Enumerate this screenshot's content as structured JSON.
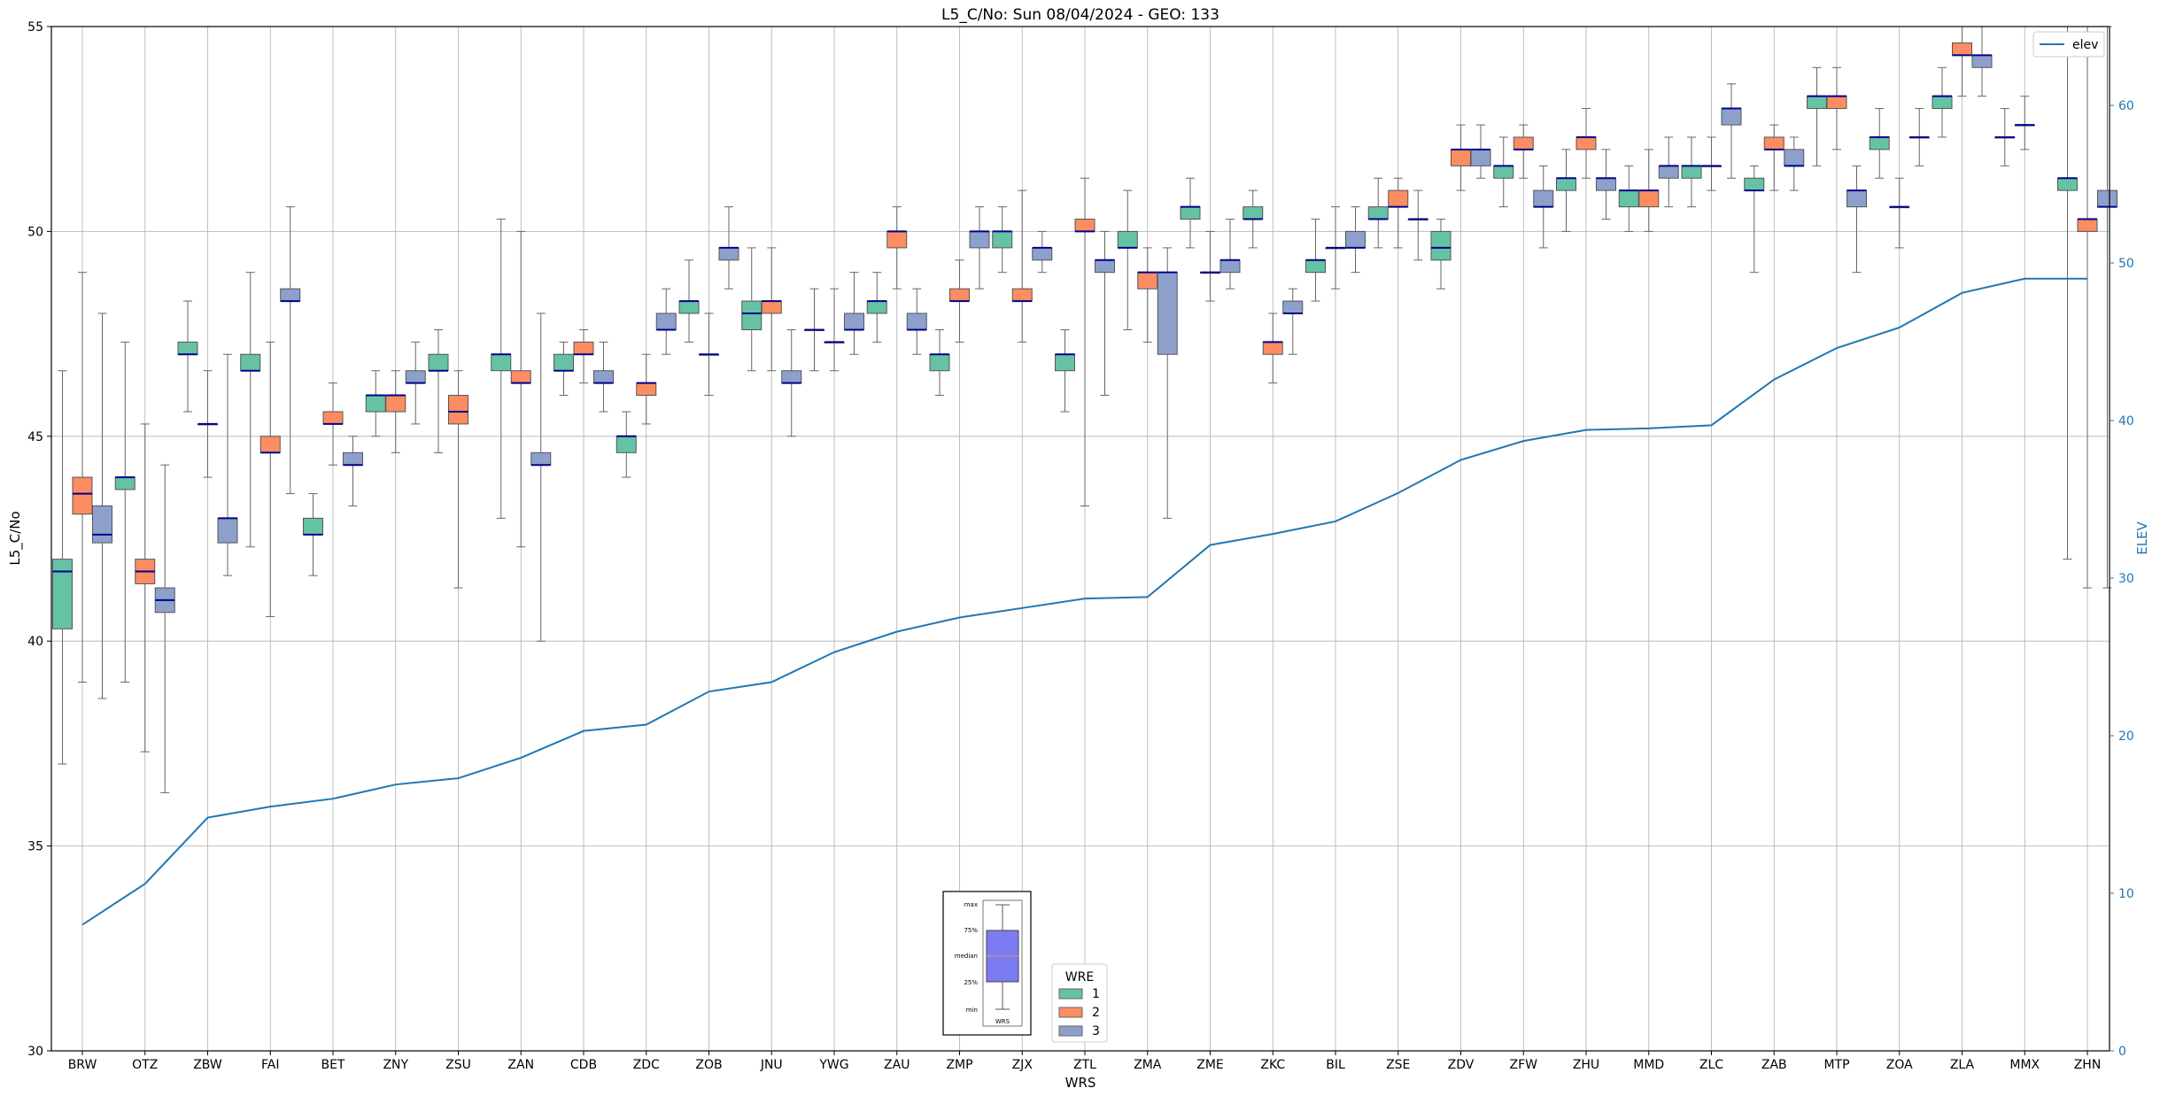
{
  "chart_data": {
    "type": "box",
    "title": "L5_C/No: Sun 08/04/2024 - GEO: 133",
    "xlabel": "WRS",
    "ylabel": "L5_C/No",
    "y2label": "ELEV",
    "ylim": [
      30,
      55
    ],
    "y2lim": [
      0,
      65
    ],
    "yticks": [
      30,
      35,
      40,
      45,
      50,
      55
    ],
    "y2ticks": [
      0,
      10,
      20,
      30,
      40,
      50,
      60
    ],
    "grid": true,
    "categories": [
      "BRW",
      "OTZ",
      "ZBW",
      "FAI",
      "BET",
      "ZNY",
      "ZSU",
      "ZAN",
      "CDB",
      "ZDC",
      "ZOB",
      "JNU",
      "YWG",
      "ZAU",
      "ZMP",
      "ZJX",
      "ZTL",
      "ZMA",
      "ZME",
      "ZKC",
      "BIL",
      "ZSE",
      "ZDV",
      "ZFW",
      "ZHU",
      "MMD",
      "ZLC",
      "ZAB",
      "MTP",
      "ZOA",
      "ZLA",
      "MMX",
      "ZHN"
    ],
    "legend": {
      "title": "WRE",
      "placement": "lower-center",
      "entries": [
        "1",
        "2",
        "3"
      ]
    },
    "legend2": {
      "entries": [
        "elev"
      ],
      "placement": "top-right"
    },
    "colors": {
      "wre1": "#66c2a5",
      "wre2": "#fc8d62",
      "wre3": "#8da0cb",
      "median": "#00008b",
      "elev": "#1f77b4",
      "whisker": "#666666"
    },
    "boxes": [
      {
        "cat": "BRW",
        "wre": 1,
        "min": 37.0,
        "q1": 40.3,
        "median": 41.7,
        "q3": 42.0,
        "max": 46.6
      },
      {
        "cat": "BRW",
        "wre": 2,
        "min": 39.0,
        "q1": 43.1,
        "median": 43.6,
        "q3": 44.0,
        "max": 49.0
      },
      {
        "cat": "BRW",
        "wre": 3,
        "min": 38.6,
        "q1": 42.4,
        "median": 42.6,
        "q3": 43.3,
        "max": 48.0
      },
      {
        "cat": "OTZ",
        "wre": 1,
        "min": 39.0,
        "q1": 43.7,
        "median": 44.0,
        "q3": 44.0,
        "max": 47.3
      },
      {
        "cat": "OTZ",
        "wre": 2,
        "min": 37.3,
        "q1": 41.4,
        "median": 41.7,
        "q3": 42.0,
        "max": 45.3
      },
      {
        "cat": "OTZ",
        "wre": 3,
        "min": 36.3,
        "q1": 40.7,
        "median": 41.0,
        "q3": 41.3,
        "max": 44.3
      },
      {
        "cat": "ZBW",
        "wre": 1,
        "min": 45.6,
        "q1": 47.0,
        "median": 47.0,
        "q3": 47.3,
        "max": 48.3
      },
      {
        "cat": "ZBW",
        "wre": 3,
        "min": 44.0,
        "q1": 45.3,
        "median": 45.3,
        "q3": 45.3,
        "max": 46.6
      },
      {
        "cat": "ZBW",
        "wre": 3,
        "min": 41.6,
        "q1": 42.4,
        "median": 43.0,
        "q3": 43.0,
        "max": 47.0
      },
      {
        "cat": "FAI",
        "wre": 1,
        "min": 42.3,
        "q1": 46.6,
        "median": 46.6,
        "q3": 47.0,
        "max": 49.0
      },
      {
        "cat": "FAI",
        "wre": 2,
        "min": 40.6,
        "q1": 44.6,
        "median": 44.6,
        "q3": 45.0,
        "max": 47.3
      },
      {
        "cat": "FAI",
        "wre": 3,
        "min": 43.6,
        "q1": 48.3,
        "median": 48.3,
        "q3": 48.6,
        "max": 50.6
      },
      {
        "cat": "BET",
        "wre": 1,
        "min": 41.6,
        "q1": 42.6,
        "median": 42.6,
        "q3": 43.0,
        "max": 43.6
      },
      {
        "cat": "BET",
        "wre": 2,
        "min": 44.3,
        "q1": 45.3,
        "median": 45.3,
        "q3": 45.6,
        "max": 46.3
      },
      {
        "cat": "BET",
        "wre": 3,
        "min": 43.3,
        "q1": 44.3,
        "median": 44.3,
        "q3": 44.6,
        "max": 45.0
      },
      {
        "cat": "ZNY",
        "wre": 1,
        "min": 45.0,
        "q1": 45.6,
        "median": 46.0,
        "q3": 46.0,
        "max": 46.6
      },
      {
        "cat": "ZNY",
        "wre": 2,
        "min": 44.6,
        "q1": 45.6,
        "median": 46.0,
        "q3": 46.0,
        "max": 46.6
      },
      {
        "cat": "ZNY",
        "wre": 3,
        "min": 45.3,
        "q1": 46.3,
        "median": 46.3,
        "q3": 46.6,
        "max": 47.3
      },
      {
        "cat": "ZSU",
        "wre": 1,
        "min": 44.6,
        "q1": 46.6,
        "median": 46.6,
        "q3": 47.0,
        "max": 47.6
      },
      {
        "cat": "ZSU",
        "wre": 2,
        "min": 41.3,
        "q1": 45.3,
        "median": 45.6,
        "q3": 46.0,
        "max": 46.6
      },
      {
        "cat": "ZAN",
        "wre": 1,
        "min": 43.0,
        "q1": 46.6,
        "median": 47.0,
        "q3": 47.0,
        "max": 50.3
      },
      {
        "cat": "ZAN",
        "wre": 2,
        "min": 42.3,
        "q1": 46.3,
        "median": 46.3,
        "q3": 46.6,
        "max": 50.0
      },
      {
        "cat": "ZAN",
        "wre": 3,
        "min": 40.0,
        "q1": 44.3,
        "median": 44.3,
        "q3": 44.6,
        "max": 48.0
      },
      {
        "cat": "CDB",
        "wre": 1,
        "min": 46.0,
        "q1": 46.6,
        "median": 46.6,
        "q3": 47.0,
        "max": 47.3
      },
      {
        "cat": "CDB",
        "wre": 2,
        "min": 46.3,
        "q1": 47.0,
        "median": 47.0,
        "q3": 47.3,
        "max": 47.6
      },
      {
        "cat": "CDB",
        "wre": 3,
        "min": 45.6,
        "q1": 46.3,
        "median": 46.3,
        "q3": 46.6,
        "max": 47.3
      },
      {
        "cat": "ZDC",
        "wre": 1,
        "min": 44.0,
        "q1": 44.6,
        "median": 45.0,
        "q3": 45.0,
        "max": 45.6
      },
      {
        "cat": "ZDC",
        "wre": 2,
        "min": 45.3,
        "q1": 46.0,
        "median": 46.3,
        "q3": 46.3,
        "max": 47.0
      },
      {
        "cat": "ZDC",
        "wre": 3,
        "min": 47.0,
        "q1": 47.6,
        "median": 47.6,
        "q3": 48.0,
        "max": 48.6
      },
      {
        "cat": "ZOB",
        "wre": 1,
        "min": 47.3,
        "q1": 48.0,
        "median": 48.3,
        "q3": 48.3,
        "max": 49.3
      },
      {
        "cat": "ZOB",
        "wre": 3,
        "min": 46.0,
        "q1": 47.0,
        "median": 47.0,
        "q3": 47.0,
        "max": 48.0
      },
      {
        "cat": "ZOB",
        "wre": 3,
        "min": 48.6,
        "q1": 49.3,
        "median": 49.6,
        "q3": 49.6,
        "max": 50.6
      },
      {
        "cat": "JNU",
        "wre": 1,
        "min": 46.6,
        "q1": 47.6,
        "median": 48.0,
        "q3": 48.3,
        "max": 49.6
      },
      {
        "cat": "JNU",
        "wre": 2,
        "min": 46.6,
        "q1": 48.0,
        "median": 48.3,
        "q3": 48.3,
        "max": 49.6
      },
      {
        "cat": "JNU",
        "wre": 3,
        "min": 45.0,
        "q1": 46.3,
        "median": 46.3,
        "q3": 46.6,
        "max": 47.6
      },
      {
        "cat": "YWG",
        "wre": 1,
        "min": 46.6,
        "q1": 47.6,
        "median": 47.6,
        "q3": 47.6,
        "max": 48.6
      },
      {
        "cat": "YWG",
        "wre": 3,
        "min": 46.6,
        "q1": 47.3,
        "median": 47.3,
        "q3": 47.3,
        "max": 48.6
      },
      {
        "cat": "YWG",
        "wre": 3,
        "min": 47.0,
        "q1": 47.6,
        "median": 47.6,
        "q3": 48.0,
        "max": 49.0
      },
      {
        "cat": "ZAU",
        "wre": 1,
        "min": 47.3,
        "q1": 48.0,
        "median": 48.3,
        "q3": 48.3,
        "max": 49.0
      },
      {
        "cat": "ZAU",
        "wre": 2,
        "min": 48.6,
        "q1": 49.6,
        "median": 50.0,
        "q3": 50.0,
        "max": 50.6
      },
      {
        "cat": "ZAU",
        "wre": 3,
        "min": 47.0,
        "q1": 47.6,
        "median": 47.6,
        "q3": 48.0,
        "max": 48.6
      },
      {
        "cat": "ZMP",
        "wre": 1,
        "min": 46.0,
        "q1": 46.6,
        "median": 47.0,
        "q3": 47.0,
        "max": 47.6
      },
      {
        "cat": "ZMP",
        "wre": 2,
        "min": 47.3,
        "q1": 48.3,
        "median": 48.3,
        "q3": 48.6,
        "max": 49.3
      },
      {
        "cat": "ZMP",
        "wre": 3,
        "min": 48.6,
        "q1": 49.6,
        "median": 50.0,
        "q3": 50.0,
        "max": 50.6
      },
      {
        "cat": "ZJX",
        "wre": 1,
        "min": 49.0,
        "q1": 49.6,
        "median": 50.0,
        "q3": 50.0,
        "max": 50.6
      },
      {
        "cat": "ZJX",
        "wre": 2,
        "min": 47.3,
        "q1": 48.3,
        "median": 48.3,
        "q3": 48.6,
        "max": 51.0
      },
      {
        "cat": "ZJX",
        "wre": 3,
        "min": 49.0,
        "q1": 49.3,
        "median": 49.6,
        "q3": 49.6,
        "max": 50.0
      },
      {
        "cat": "ZTL",
        "wre": 1,
        "min": 45.6,
        "q1": 46.6,
        "median": 47.0,
        "q3": 47.0,
        "max": 47.6
      },
      {
        "cat": "ZTL",
        "wre": 2,
        "min": 43.3,
        "q1": 50.0,
        "median": 50.0,
        "q3": 50.3,
        "max": 51.3
      },
      {
        "cat": "ZTL",
        "wre": 3,
        "min": 46.0,
        "q1": 49.0,
        "median": 49.3,
        "q3": 49.3,
        "max": 50.0
      },
      {
        "cat": "ZMA",
        "wre": 1,
        "min": 47.6,
        "q1": 49.6,
        "median": 49.6,
        "q3": 50.0,
        "max": 51.0
      },
      {
        "cat": "ZMA",
        "wre": 2,
        "min": 47.3,
        "q1": 48.6,
        "median": 49.0,
        "q3": 49.0,
        "max": 49.6
      },
      {
        "cat": "ZMA",
        "wre": 3,
        "min": 43.0,
        "q1": 47.0,
        "median": 49.0,
        "q3": 49.0,
        "max": 49.6
      },
      {
        "cat": "ZME",
        "wre": 1,
        "min": 49.6,
        "q1": 50.3,
        "median": 50.6,
        "q3": 50.6,
        "max": 51.3
      },
      {
        "cat": "ZME",
        "wre": 3,
        "min": 48.3,
        "q1": 49.0,
        "median": 49.0,
        "q3": 49.0,
        "max": 50.0
      },
      {
        "cat": "ZME",
        "wre": 3,
        "min": 48.6,
        "q1": 49.0,
        "median": 49.3,
        "q3": 49.3,
        "max": 50.3
      },
      {
        "cat": "ZKC",
        "wre": 1,
        "min": 49.6,
        "q1": 50.3,
        "median": 50.3,
        "q3": 50.6,
        "max": 51.0
      },
      {
        "cat": "ZKC",
        "wre": 2,
        "min": 46.3,
        "q1": 47.0,
        "median": 47.3,
        "q3": 47.3,
        "max": 48.0
      },
      {
        "cat": "ZKC",
        "wre": 3,
        "min": 47.0,
        "q1": 48.0,
        "median": 48.0,
        "q3": 48.3,
        "max": 48.6
      },
      {
        "cat": "BIL",
        "wre": 1,
        "min": 48.3,
        "q1": 49.0,
        "median": 49.3,
        "q3": 49.3,
        "max": 50.3
      },
      {
        "cat": "BIL",
        "wre": 3,
        "min": 48.6,
        "q1": 49.6,
        "median": 49.6,
        "q3": 49.6,
        "max": 50.6
      },
      {
        "cat": "BIL",
        "wre": 3,
        "min": 49.0,
        "q1": 49.6,
        "median": 49.6,
        "q3": 50.0,
        "max": 50.6
      },
      {
        "cat": "ZSE",
        "wre": 1,
        "min": 49.6,
        "q1": 50.3,
        "median": 50.3,
        "q3": 50.6,
        "max": 51.3
      },
      {
        "cat": "ZSE",
        "wre": 2,
        "min": 49.6,
        "q1": 50.6,
        "median": 50.6,
        "q3": 51.0,
        "max": 51.3
      },
      {
        "cat": "ZSE",
        "wre": 3,
        "min": 49.3,
        "q1": 50.3,
        "median": 50.3,
        "q3": 50.3,
        "max": 51.0
      },
      {
        "cat": "ZDV",
        "wre": 1,
        "min": 48.6,
        "q1": 49.3,
        "median": 49.6,
        "q3": 50.0,
        "max": 50.3
      },
      {
        "cat": "ZDV",
        "wre": 2,
        "min": 51.0,
        "q1": 51.6,
        "median": 52.0,
        "q3": 52.0,
        "max": 52.6
      },
      {
        "cat": "ZDV",
        "wre": 3,
        "min": 51.3,
        "q1": 51.6,
        "median": 52.0,
        "q3": 52.0,
        "max": 52.6
      },
      {
        "cat": "ZFW",
        "wre": 1,
        "min": 50.6,
        "q1": 51.3,
        "median": 51.6,
        "q3": 51.6,
        "max": 52.3
      },
      {
        "cat": "ZFW",
        "wre": 2,
        "min": 51.3,
        "q1": 52.0,
        "median": 52.0,
        "q3": 52.3,
        "max": 52.6
      },
      {
        "cat": "ZFW",
        "wre": 3,
        "min": 49.6,
        "q1": 50.6,
        "median": 50.6,
        "q3": 51.0,
        "max": 51.6
      },
      {
        "cat": "ZHU",
        "wre": 1,
        "min": 50.0,
        "q1": 51.0,
        "median": 51.3,
        "q3": 51.3,
        "max": 52.0
      },
      {
        "cat": "ZHU",
        "wre": 2,
        "min": 51.3,
        "q1": 52.0,
        "median": 52.3,
        "q3": 52.3,
        "max": 53.0
      },
      {
        "cat": "ZHU",
        "wre": 3,
        "min": 50.3,
        "q1": 51.0,
        "median": 51.3,
        "q3": 51.3,
        "max": 52.0
      },
      {
        "cat": "MMD",
        "wre": 1,
        "min": 50.0,
        "q1": 50.6,
        "median": 51.0,
        "q3": 51.0,
        "max": 51.6
      },
      {
        "cat": "MMD",
        "wre": 2,
        "min": 50.0,
        "q1": 50.6,
        "median": 51.0,
        "q3": 51.0,
        "max": 52.0
      },
      {
        "cat": "MMD",
        "wre": 3,
        "min": 50.6,
        "q1": 51.3,
        "median": 51.6,
        "q3": 51.6,
        "max": 52.3
      },
      {
        "cat": "ZLC",
        "wre": 1,
        "min": 50.6,
        "q1": 51.3,
        "median": 51.6,
        "q3": 51.6,
        "max": 52.3
      },
      {
        "cat": "ZLC",
        "wre": 3,
        "min": 51.0,
        "q1": 51.6,
        "median": 51.6,
        "q3": 51.6,
        "max": 52.3
      },
      {
        "cat": "ZLC",
        "wre": 3,
        "min": 51.3,
        "q1": 52.6,
        "median": 53.0,
        "q3": 53.0,
        "max": 53.6
      },
      {
        "cat": "ZAB",
        "wre": 1,
        "min": 49.0,
        "q1": 51.0,
        "median": 51.0,
        "q3": 51.3,
        "max": 51.6
      },
      {
        "cat": "ZAB",
        "wre": 2,
        "min": 51.0,
        "q1": 52.0,
        "median": 52.0,
        "q3": 52.3,
        "max": 52.6
      },
      {
        "cat": "ZAB",
        "wre": 3,
        "min": 51.0,
        "q1": 51.6,
        "median": 51.6,
        "q3": 52.0,
        "max": 52.3
      },
      {
        "cat": "MTP",
        "wre": 1,
        "min": 51.6,
        "q1": 53.0,
        "median": 53.3,
        "q3": 53.3,
        "max": 54.0
      },
      {
        "cat": "MTP",
        "wre": 2,
        "min": 52.0,
        "q1": 53.0,
        "median": 53.3,
        "q3": 53.3,
        "max": 54.0
      },
      {
        "cat": "MTP",
        "wre": 3,
        "min": 49.0,
        "q1": 50.6,
        "median": 51.0,
        "q3": 51.0,
        "max": 51.6
      },
      {
        "cat": "ZOA",
        "wre": 1,
        "min": 51.3,
        "q1": 52.0,
        "median": 52.3,
        "q3": 52.3,
        "max": 53.0
      },
      {
        "cat": "ZOA",
        "wre": 3,
        "min": 49.6,
        "q1": 50.6,
        "median": 50.6,
        "q3": 50.6,
        "max": 51.3
      },
      {
        "cat": "ZOA",
        "wre": 3,
        "min": 51.6,
        "q1": 52.3,
        "median": 52.3,
        "q3": 52.3,
        "max": 53.0
      },
      {
        "cat": "ZLA",
        "wre": 1,
        "min": 52.3,
        "q1": 53.0,
        "median": 53.3,
        "q3": 53.3,
        "max": 54.0
      },
      {
        "cat": "ZLA",
        "wre": 2,
        "min": 53.3,
        "q1": 54.3,
        "median": 54.3,
        "q3": 54.6,
        "max": 55.0
      },
      {
        "cat": "ZLA",
        "wre": 3,
        "min": 53.3,
        "q1": 54.0,
        "median": 54.3,
        "q3": 54.3,
        "max": 55.0
      },
      {
        "cat": "MMX",
        "wre": 1,
        "min": 51.6,
        "q1": 52.3,
        "median": 52.3,
        "q3": 52.3,
        "max": 53.0
      },
      {
        "cat": "MMX",
        "wre": 3,
        "min": 52.0,
        "q1": 52.6,
        "median": 52.6,
        "q3": 52.6,
        "max": 53.3
      },
      {
        "cat": "ZHN",
        "wre": 1,
        "min": 42.0,
        "q1": 51.0,
        "median": 51.3,
        "q3": 51.3,
        "max": 55.0
      },
      {
        "cat": "ZHN",
        "wre": 2,
        "min": 41.3,
        "q1": 50.0,
        "median": 50.3,
        "q3": 50.3,
        "max": 55.0
      },
      {
        "cat": "ZHN",
        "wre": 3,
        "min": 41.3,
        "q1": 50.6,
        "median": 50.6,
        "q3": 51.0,
        "max": 55.0
      }
    ],
    "elev_series": {
      "name": "elev",
      "values": [
        8.0,
        10.6,
        14.8,
        15.5,
        16.0,
        16.9,
        17.3,
        18.6,
        20.3,
        20.7,
        22.8,
        23.4,
        25.3,
        26.6,
        27.5,
        28.1,
        28.7,
        28.8,
        32.1,
        32.8,
        33.6,
        35.4,
        37.5,
        38.7,
        39.4,
        39.5,
        39.7,
        42.6,
        44.6,
        45.9,
        48.1,
        49.0,
        49.0
      ],
      "x": [
        0,
        1,
        2,
        3,
        4,
        5,
        6,
        7,
        8,
        9,
        10,
        11,
        12,
        13,
        14,
        15,
        16,
        17,
        18,
        19,
        20,
        21,
        22,
        23,
        24,
        25,
        26,
        27,
        28,
        29,
        30,
        31,
        32
      ]
    },
    "inset_key": {
      "labels": [
        "max",
        "75%",
        "median",
        "25%",
        "min"
      ],
      "caption": "WRS"
    }
  }
}
